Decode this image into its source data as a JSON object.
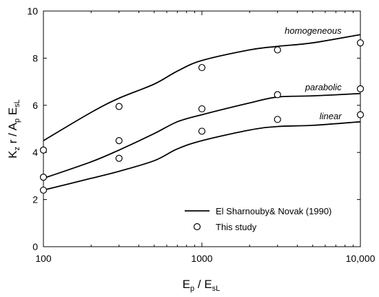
{
  "chart_data": {
    "type": "line",
    "xlabel_main": "E",
    "xlabel_sub1": "p",
    "xlabel_mid": " / E",
    "xlabel_sub2": "sL",
    "ylabel_k": "K",
    "ylabel_ksub": "z",
    "ylabel_mid": " r / A",
    "ylabel_psub": "p",
    "ylabel_e": " E",
    "ylabel_esub": "sL",
    "x_scale": "log",
    "xlim": [
      100,
      10000
    ],
    "ylim": [
      0,
      10
    ],
    "x_ticks": [
      100,
      1000,
      10000
    ],
    "x_tick_labels": [
      "100",
      "1000",
      "10,000"
    ],
    "y_ticks": [
      0,
      2,
      4,
      6,
      8,
      10
    ],
    "y_tick_labels": [
      "0",
      "2",
      "4",
      "6",
      "8",
      "10"
    ],
    "grid": false,
    "legend_position": "bottom-right",
    "series": [
      {
        "name": "El Sharnouby& Novak (1990)",
        "kind": "line",
        "curve_label": "homogeneous",
        "x": [
          100,
          200,
          300,
          500,
          700,
          1000,
          2000,
          3000,
          5000,
          10000
        ],
        "y": [
          4.5,
          5.7,
          6.3,
          6.9,
          7.45,
          7.9,
          8.35,
          8.5,
          8.65,
          9.0
        ]
      },
      {
        "name": "El Sharnouby& Novak (1990)",
        "kind": "line",
        "curve_label": "parabolic",
        "x": [
          100,
          200,
          300,
          500,
          700,
          1000,
          2000,
          3000,
          5000,
          10000
        ],
        "y": [
          2.9,
          3.6,
          4.1,
          4.8,
          5.3,
          5.6,
          6.1,
          6.35,
          6.4,
          6.5
        ]
      },
      {
        "name": "El Sharnouby& Novak (1990)",
        "kind": "line",
        "curve_label": "linear",
        "x": [
          100,
          200,
          300,
          500,
          700,
          1000,
          2000,
          3000,
          5000,
          10000
        ],
        "y": [
          2.4,
          2.9,
          3.2,
          3.65,
          4.15,
          4.5,
          4.95,
          5.1,
          5.15,
          5.3
        ]
      },
      {
        "name": "This study",
        "kind": "scatter",
        "x": [
          100,
          100,
          100,
          300,
          300,
          300,
          1000,
          1000,
          1000,
          3000,
          3000,
          3000,
          10000,
          10000,
          10000
        ],
        "y": [
          4.1,
          2.95,
          2.4,
          5.95,
          4.5,
          3.75,
          7.6,
          5.85,
          4.9,
          8.35,
          6.45,
          5.4,
          8.65,
          6.7,
          5.6
        ]
      }
    ],
    "legend": [
      {
        "label": "El Sharnouby& Novak (1990)",
        "marker": "line"
      },
      {
        "label": "This study",
        "marker": "circle"
      }
    ]
  }
}
